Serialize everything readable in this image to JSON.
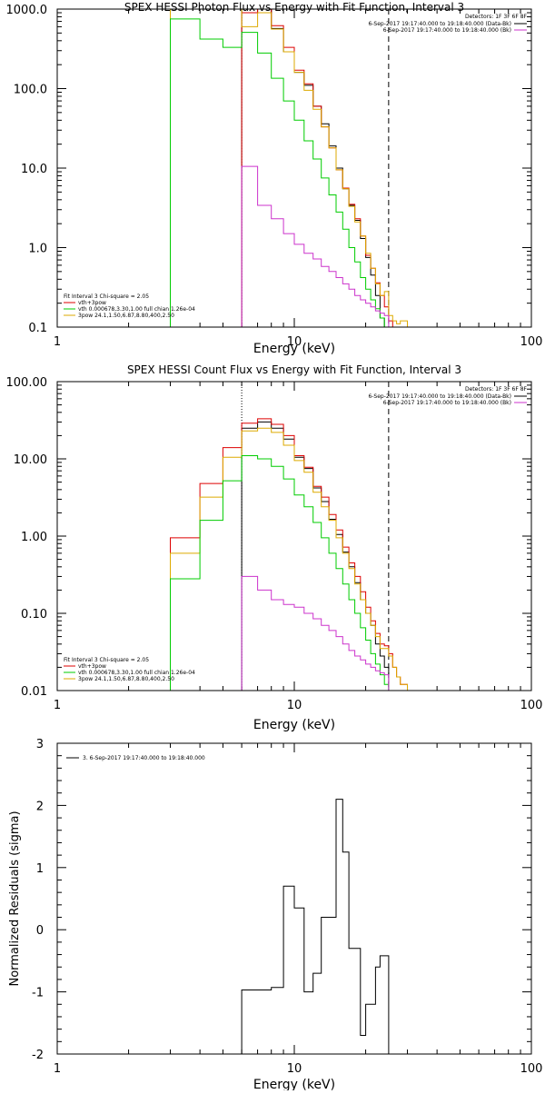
{
  "chart_data": [
    {
      "type": "line",
      "title": "SPEX HESSI Photon Flux vs Energy with Fit Function, Interval 3",
      "xlabel": "Energy (keV)",
      "ylabel": "",
      "xscale": "log",
      "yscale": "log",
      "xlim": [
        1,
        100
      ],
      "ylim": [
        0.1,
        1000
      ],
      "xticks": [
        {
          "v": 1,
          "label": "1"
        },
        {
          "v": 10,
          "label": "10"
        },
        {
          "v": 100,
          "label": "100"
        }
      ],
      "yticks": [
        {
          "v": 0.1,
          "label": "0.1"
        },
        {
          "v": 1,
          "label": "1.0"
        },
        {
          "v": 10,
          "label": "10.0"
        },
        {
          "v": 100,
          "label": "100.0"
        },
        {
          "v": 1000,
          "label": "1000.0"
        }
      ],
      "vlines": [
        {
          "x": 6,
          "style": "dotted",
          "color": "#000000"
        },
        {
          "x": 25,
          "style": "dashed",
          "color": "#000000"
        }
      ],
      "legend_top": {
        "header": "Detectors: 1F 3F 6F 8F",
        "entries": [
          {
            "text": "6-Sep-2017 19:17:40.000 to 19:18:40.000 (Data-Bk)",
            "color": "#000000"
          },
          {
            "text": "6-Sep-2017 19:17:40.000 to 19:18:40.000 (Bk)",
            "color": "#cc33cc"
          }
        ]
      },
      "legend_bottom": {
        "header": "Fit Interval 3   Chi-square = 2.05",
        "entries": [
          {
            "text": "vth+3pow",
            "color": "#dd0000"
          },
          {
            "text": "vth 0.000678,3.30,1.00   full chian 1.26e-04",
            "color": "#00cc00"
          },
          {
            "text": "3pow 24.1,1.50,6.87,8.80,400,2.50",
            "color": "#ddaa00"
          }
        ]
      },
      "series": [
        {
          "color": "#000000",
          "edges": [
            6,
            7,
            8,
            9,
            10,
            11,
            12,
            13,
            14,
            15,
            16,
            17,
            18,
            19,
            20,
            21,
            22,
            23,
            24,
            25
          ],
          "values": [
            1000,
            1050,
            570,
            290,
            160,
            110,
            60,
            36,
            19,
            10,
            5.5,
            3.4,
            2.2,
            1.3,
            0.75,
            0.45,
            0.25,
            0.13,
            0.1
          ]
        },
        {
          "color": "#dd0000",
          "edges": [
            6,
            7,
            8,
            9,
            10,
            11,
            12,
            13,
            14,
            15,
            16,
            17,
            18,
            19,
            20,
            21,
            22,
            23,
            24,
            25,
            26,
            27,
            28,
            30
          ],
          "values": [
            900,
            1050,
            620,
            330,
            170,
            115,
            60,
            33,
            18,
            9.5,
            5.6,
            3.5,
            2.3,
            1.4,
            0.8,
            0.55,
            0.36,
            0.25,
            0.18,
            0.12,
            0.1,
            0.1,
            0.1
          ]
        },
        {
          "color": "#ddaa00",
          "edges": [
            3,
            4,
            5,
            6,
            7,
            8,
            9,
            10,
            11,
            12,
            13,
            14,
            15,
            16,
            17,
            18,
            19,
            20,
            21,
            22,
            23,
            24,
            25,
            26,
            27,
            28,
            29,
            30
          ],
          "values": [
            1000,
            1000,
            1000,
            600,
            900,
            560,
            290,
            160,
            95,
            55,
            33,
            18,
            9.5,
            5.5,
            3.3,
            2.1,
            1.4,
            0.85,
            0.55,
            0.35,
            0.25,
            0.28,
            0.14,
            0.12,
            0.11,
            0.12,
            0.12
          ]
        },
        {
          "color": "#00cc00",
          "edges": [
            3,
            4,
            5,
            6,
            7,
            8,
            9,
            10,
            11,
            12,
            13,
            14,
            15,
            16,
            17,
            18,
            19,
            20,
            21,
            22,
            23,
            24,
            25
          ],
          "values": [
            750,
            420,
            330,
            510,
            280,
            135,
            70,
            40,
            22,
            13,
            7.5,
            4.6,
            2.8,
            1.7,
            1.0,
            0.66,
            0.42,
            0.3,
            0.22,
            0.17,
            0.13,
            0.1
          ]
        },
        {
          "color": "#cc33cc",
          "edges": [
            6,
            7,
            8,
            9,
            10,
            11,
            12,
            13,
            14,
            15,
            16,
            17,
            18,
            19,
            20,
            21,
            22,
            23,
            24,
            25
          ],
          "values": [
            10.5,
            3.4,
            2.3,
            1.5,
            1.1,
            0.85,
            0.72,
            0.58,
            0.5,
            0.42,
            0.35,
            0.3,
            0.25,
            0.22,
            0.2,
            0.18,
            0.16,
            0.15,
            0.14
          ]
        }
      ]
    },
    {
      "type": "line",
      "title": "SPEX HESSI Count Flux vs Energy with Fit Function, Interval 3",
      "xlabel": "Energy (keV)",
      "ylabel": "",
      "xscale": "log",
      "yscale": "log",
      "xlim": [
        1,
        100
      ],
      "ylim": [
        0.01,
        100
      ],
      "xticks": [
        {
          "v": 1,
          "label": "1"
        },
        {
          "v": 10,
          "label": "10"
        },
        {
          "v": 100,
          "label": "100"
        }
      ],
      "yticks": [
        {
          "v": 0.01,
          "label": "0.01"
        },
        {
          "v": 0.1,
          "label": "0.10"
        },
        {
          "v": 1,
          "label": "1.00"
        },
        {
          "v": 10,
          "label": "10.00"
        },
        {
          "v": 100,
          "label": "100.00"
        }
      ],
      "vlines": [
        {
          "x": 6,
          "style": "dotted",
          "color": "#000000"
        },
        {
          "x": 25,
          "style": "dashed",
          "color": "#000000"
        }
      ],
      "legend_top": {
        "header": "Detectors: 1F 3F 6F 8F",
        "entries": [
          {
            "text": "6-Sep-2017 19:17:40.000 to 19:18:40.000 (Data-Bk)",
            "color": "#000000"
          },
          {
            "text": "6-Sep-2017 19:17:40.000 to 19:18:40.000 (Bk)",
            "color": "#cc33cc"
          }
        ]
      },
      "legend_bottom": {
        "header": "Fit Interval 3   Chi-square = 2.05",
        "entries": [
          {
            "text": "vth+3pow",
            "color": "#dd0000"
          },
          {
            "text": "vth 0.000678,3.30,1.00   full chian 1.26e-04",
            "color": "#00cc00"
          },
          {
            "text": "3pow 24.1,1.50,6.87,8.80,400,2.50",
            "color": "#ddaa00"
          }
        ]
      },
      "series": [
        {
          "color": "#000000",
          "edges": [
            6,
            7,
            8,
            9,
            10,
            11,
            12,
            13,
            14,
            15,
            16,
            17,
            18,
            19,
            20,
            21,
            22,
            23,
            24,
            25
          ],
          "values": [
            25,
            30,
            25,
            18,
            10.5,
            7.5,
            4.2,
            2.8,
            1.65,
            1.05,
            0.62,
            0.4,
            0.25,
            0.15,
            0.1,
            0.07,
            0.04,
            0.028,
            0.02
          ]
        },
        {
          "color": "#dd0000",
          "edges": [
            3,
            4,
            5,
            6,
            7,
            8,
            9,
            10,
            11,
            12,
            13,
            14,
            15,
            16,
            17,
            18,
            19,
            20,
            21,
            22,
            23,
            24,
            25,
            26,
            27,
            28,
            30
          ],
          "values": [
            0.95,
            4.8,
            14,
            29,
            33,
            28,
            20,
            11,
            7.8,
            4.4,
            3.2,
            1.9,
            1.2,
            0.72,
            0.45,
            0.3,
            0.19,
            0.12,
            0.08,
            0.055,
            0.04,
            0.038,
            0.03,
            0.02,
            0.015,
            0.012
          ]
        },
        {
          "color": "#ddaa00",
          "edges": [
            3,
            4,
            5,
            6,
            7,
            8,
            9,
            10,
            11,
            12,
            13,
            14,
            15,
            16,
            17,
            18,
            19,
            20,
            21,
            22,
            23,
            24,
            25,
            26,
            27,
            28,
            30
          ],
          "values": [
            0.6,
            3.2,
            10.5,
            23,
            25,
            22,
            15,
            9.5,
            6.7,
            3.7,
            2.4,
            1.6,
            0.95,
            0.6,
            0.38,
            0.24,
            0.15,
            0.1,
            0.07,
            0.05,
            0.035,
            0.035,
            0.028,
            0.02,
            0.015,
            0.012
          ]
        },
        {
          "color": "#00cc00",
          "edges": [
            3,
            4,
            5,
            6,
            7,
            8,
            9,
            10,
            11,
            12,
            13,
            14,
            15,
            16,
            17,
            18,
            19,
            20,
            21,
            22,
            23,
            24,
            25
          ],
          "values": [
            0.28,
            1.6,
            5.2,
            11,
            10,
            8,
            5.5,
            3.4,
            2.4,
            1.5,
            0.95,
            0.6,
            0.38,
            0.24,
            0.15,
            0.1,
            0.065,
            0.045,
            0.03,
            0.022,
            0.016,
            0.012
          ]
        },
        {
          "color": "#cc33cc",
          "edges": [
            6,
            7,
            8,
            9,
            10,
            11,
            12,
            13,
            14,
            15,
            16,
            17,
            18,
            19,
            20,
            21,
            22,
            23,
            24,
            25
          ],
          "values": [
            0.3,
            0.2,
            0.15,
            0.13,
            0.12,
            0.1,
            0.085,
            0.07,
            0.06,
            0.05,
            0.04,
            0.033,
            0.028,
            0.025,
            0.022,
            0.02,
            0.018,
            0.017,
            0.016
          ]
        }
      ]
    },
    {
      "type": "line",
      "title": "",
      "xlabel": "Energy (keV)",
      "ylabel": "Normalized Residuals (sigma)",
      "xscale": "log",
      "yscale": "linear",
      "xlim": [
        1,
        100
      ],
      "ylim": [
        -2,
        3
      ],
      "xticks": [
        {
          "v": 1,
          "label": "1"
        },
        {
          "v": 10,
          "label": "10"
        },
        {
          "v": 100,
          "label": "100"
        }
      ],
      "yticks": [
        {
          "v": -2,
          "label": "-2"
        },
        {
          "v": -1,
          "label": "-1"
        },
        {
          "v": 0,
          "label": "0"
        },
        {
          "v": 1,
          "label": "1"
        },
        {
          "v": 2,
          "label": "2"
        },
        {
          "v": 3,
          "label": "3"
        }
      ],
      "vlines": [],
      "legend_top_left": {
        "entries": [
          {
            "text": "3.  6-Sep-2017 19:17:40.000 to 19:18:40.000",
            "color": "#000000"
          }
        ]
      },
      "series": [
        {
          "color": "#000000",
          "edges": [
            6,
            7,
            8,
            9,
            10,
            11,
            12,
            13,
            14,
            15,
            16,
            17,
            18,
            19,
            20,
            21,
            22,
            23,
            24,
            25
          ],
          "values": [
            -0.97,
            -0.97,
            -0.93,
            0.7,
            0.35,
            -1.0,
            -0.7,
            0.2,
            0.2,
            2.1,
            1.25,
            -0.3,
            -0.3,
            -1.7,
            -1.2,
            -1.2,
            -0.6,
            -0.42,
            -0.42
          ]
        }
      ]
    }
  ]
}
